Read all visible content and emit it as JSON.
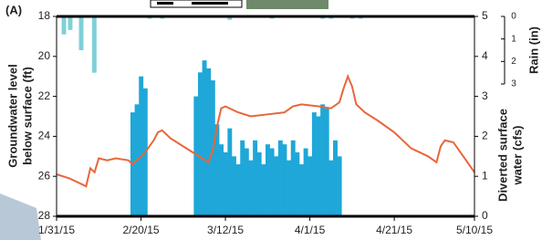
{
  "chart_data": {
    "type": "combo",
    "panel_label": "(A)",
    "y_label": [
      "Groundwater level",
      "below surface (ft)"
    ],
    "y2_label": [
      "Diverted surface",
      "water (cfs)"
    ],
    "y3_label": "Rain (in)",
    "xlim": [
      0,
      99
    ],
    "xticks": [
      {
        "value": 0,
        "label": "1/31/15"
      },
      {
        "value": 20,
        "label": "2/20/15"
      },
      {
        "value": 40,
        "label": "3/12/15"
      },
      {
        "value": 60,
        "label": "4/1/15"
      },
      {
        "value": 80,
        "label": "4/21/15"
      },
      {
        "value": 99,
        "label": "5/10/15"
      }
    ],
    "ylim": [
      28,
      18
    ],
    "yticks": [
      18,
      20,
      22,
      24,
      26,
      28
    ],
    "y2lim": [
      0,
      5
    ],
    "y2ticks": [
      0,
      1,
      2,
      3,
      4,
      5
    ],
    "y3lim": [
      3,
      0
    ],
    "y3ticks": [
      0,
      1,
      2,
      3
    ],
    "series": [
      {
        "type": "line",
        "axis": "y",
        "color": "#e8663a",
        "x": [
          0,
          3,
          6,
          7,
          8,
          9,
          10,
          12,
          14,
          17,
          18,
          19,
          21,
          23,
          24,
          25,
          27,
          30,
          33,
          36,
          37,
          38,
          39,
          40,
          43,
          46,
          50,
          54,
          56,
          58,
          62,
          65,
          67,
          68,
          69,
          70,
          71,
          73,
          76,
          80,
          84,
          88,
          90,
          90.5,
          91,
          92,
          94,
          96,
          99
        ],
        "values": [
          25.9,
          26.1,
          26.4,
          26.5,
          25.6,
          25.8,
          25.1,
          25.2,
          25.1,
          25.2,
          25.4,
          25.2,
          24.8,
          24.2,
          23.8,
          23.7,
          24.1,
          24.5,
          24.9,
          25.3,
          24.7,
          23.5,
          22.6,
          22.5,
          22.8,
          23.0,
          22.9,
          22.8,
          22.5,
          22.4,
          22.5,
          22.6,
          22.3,
          21.6,
          21.0,
          21.5,
          22.4,
          22.8,
          23.2,
          23.8,
          24.6,
          25.0,
          25.3,
          24.9,
          24.5,
          24.2,
          24.3,
          24.9,
          25.8
        ]
      },
      {
        "type": "bar",
        "axis": "y2",
        "color": "#1ea7d8",
        "x": [
          18,
          19,
          20,
          21,
          33,
          34,
          35,
          36,
          37,
          38,
          39,
          40,
          41,
          42,
          43,
          44,
          45,
          46,
          47,
          48,
          49,
          50,
          51,
          52,
          53,
          54,
          55,
          56,
          57,
          58,
          59,
          60,
          61,
          62,
          63,
          64,
          65,
          66,
          67
        ],
        "values": [
          2.6,
          2.8,
          3.5,
          3.2,
          3.0,
          3.6,
          3.9,
          3.7,
          3.4,
          2.3,
          1.8,
          1.6,
          2.2,
          1.5,
          1.3,
          1.9,
          1.7,
          1.4,
          1.9,
          1.6,
          1.3,
          1.8,
          1.7,
          1.5,
          1.9,
          1.8,
          1.4,
          1.9,
          1.6,
          1.3,
          1.7,
          1.5,
          2.6,
          2.5,
          2.8,
          2.7,
          1.4,
          1.9,
          1.5
        ]
      },
      {
        "type": "bar",
        "axis": "y3",
        "color": "#7fd0d8",
        "x": [
          1.7,
          3.2,
          5.8,
          8.9,
          22,
          25,
          41,
          51,
          63,
          65,
          70,
          72
        ],
        "values": [
          0.8,
          0.6,
          1.5,
          2.5,
          0.1,
          0.1,
          0.15,
          0.1,
          0.1,
          0.1,
          0.1,
          0.1
        ]
      }
    ]
  }
}
